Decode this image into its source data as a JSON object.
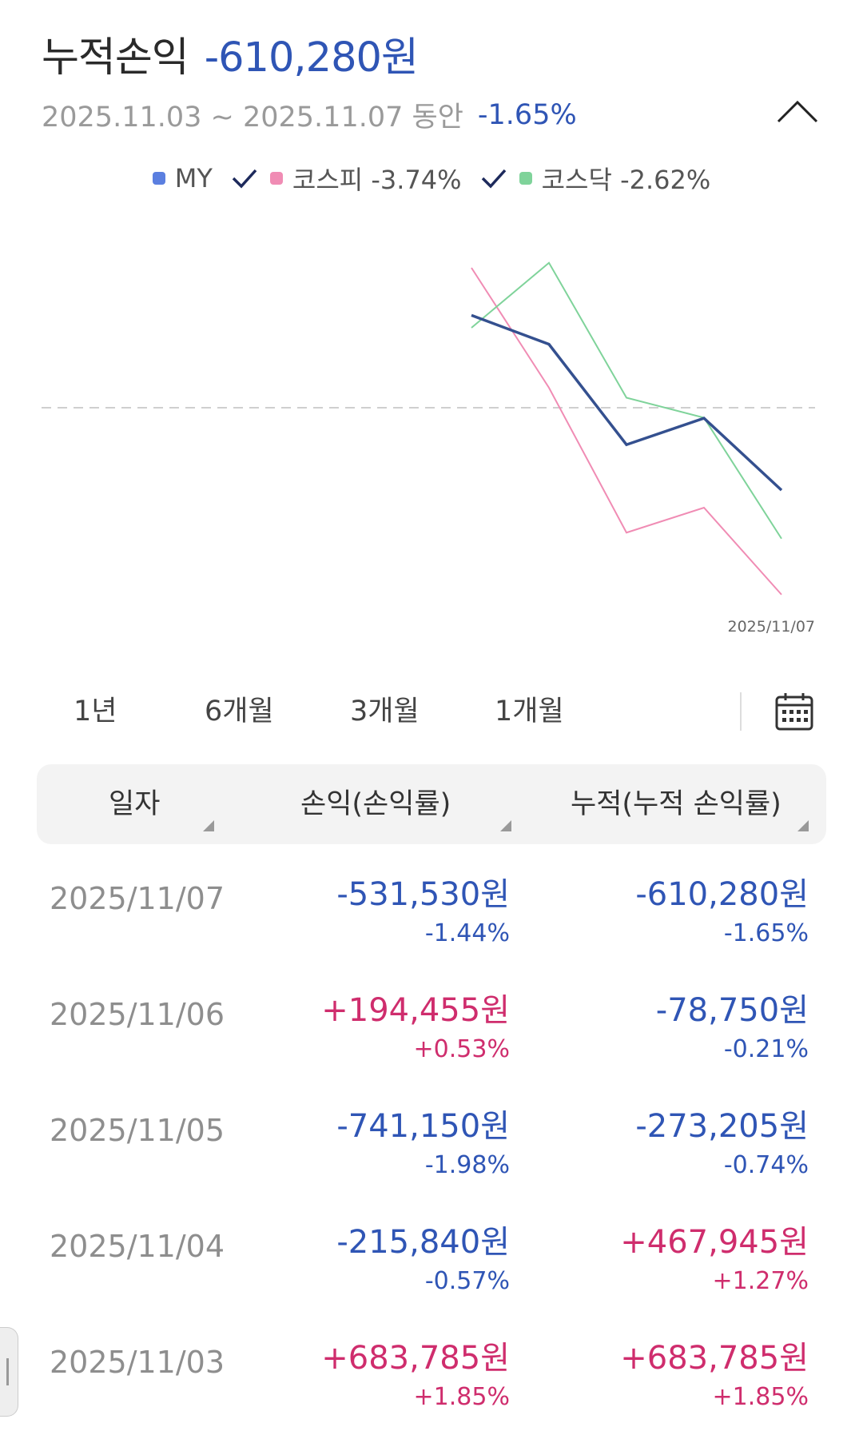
{
  "header": {
    "title": "누적손익",
    "total_value": "-610,280원",
    "period": "2025.11.03 ~ 2025.11.07 동안",
    "period_pct": "-1.65%"
  },
  "legend": {
    "my_label": "MY",
    "kospi_label": "코스피 -3.74%",
    "kosdaq_label": "코스닥 -2.62%",
    "colors": {
      "my": "#5b7fe0",
      "kospi": "#f08cb4",
      "kosdaq": "#7fd39a"
    }
  },
  "chart_data": {
    "type": "line",
    "x": [
      "2025/11/03",
      "2025/11/04",
      "2025/11/05",
      "2025/11/06",
      "2025/11/07"
    ],
    "end_label": "2025/11/07",
    "baseline": 0,
    "series": [
      {
        "name": "MY",
        "color": "#34508f",
        "values": [
          1.85,
          1.27,
          -0.74,
          -0.21,
          -1.65
        ]
      },
      {
        "name": "코스피",
        "color": "#f08cb4",
        "values": [
          2.8,
          0.4,
          -2.5,
          -2.0,
          -3.74
        ]
      },
      {
        "name": "코스닥",
        "color": "#7fd39a",
        "values": [
          1.6,
          2.9,
          0.2,
          -0.2,
          -2.62
        ]
      }
    ],
    "ylim": [
      -4.0,
      3.2
    ]
  },
  "range_buttons": [
    "1년",
    "6개월",
    "3개월",
    "1개월"
  ],
  "table": {
    "headers": [
      "일자",
      "손익(손익률)",
      "누적(누적 손익률)"
    ],
    "rows": [
      {
        "date": "2025/11/07",
        "pnl": "-531,530원",
        "pnl_pct": "-1.44%",
        "pnl_sign": "neg",
        "cum": "-610,280원",
        "cum_pct": "-1.65%",
        "cum_sign": "neg"
      },
      {
        "date": "2025/11/06",
        "pnl": "+194,455원",
        "pnl_pct": "+0.53%",
        "pnl_sign": "pos",
        "cum": "-78,750원",
        "cum_pct": "-0.21%",
        "cum_sign": "neg"
      },
      {
        "date": "2025/11/05",
        "pnl": "-741,150원",
        "pnl_pct": "-1.98%",
        "pnl_sign": "neg",
        "cum": "-273,205원",
        "cum_pct": "-0.74%",
        "cum_sign": "neg"
      },
      {
        "date": "2025/11/04",
        "pnl": "-215,840원",
        "pnl_pct": "-0.57%",
        "pnl_sign": "neg",
        "cum": "+467,945원",
        "cum_pct": "+1.27%",
        "cum_sign": "pos"
      },
      {
        "date": "2025/11/03",
        "pnl": "+683,785원",
        "pnl_pct": "+1.85%",
        "pnl_sign": "pos",
        "cum": "+683,785원",
        "cum_pct": "+1.85%",
        "cum_sign": "pos"
      }
    ]
  },
  "icons": [
    "chevron-up-icon",
    "check-icon",
    "calendar-icon"
  ]
}
